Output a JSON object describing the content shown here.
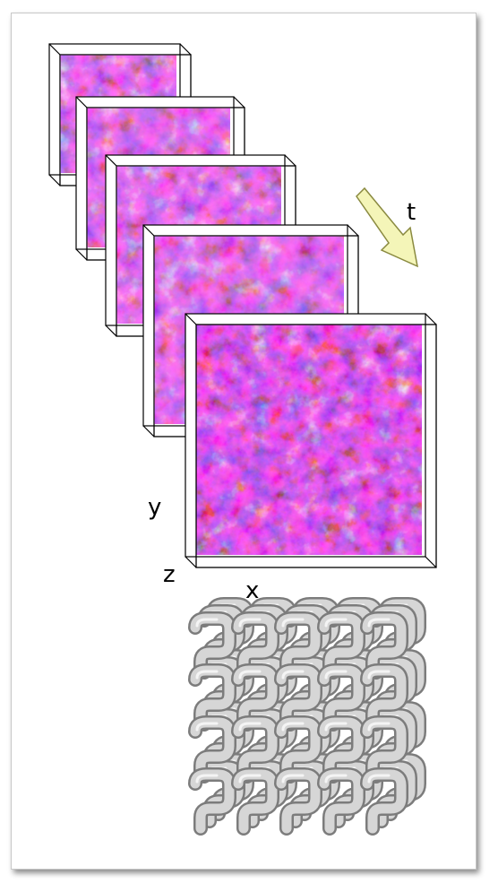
{
  "axes": {
    "y": "y",
    "z": "z",
    "x": "x",
    "time": "t"
  },
  "volume_frames": {
    "count": 5,
    "colormap": [
      "#120018",
      "#4a0a78",
      "#8a1aee",
      "#d3209a",
      "#ff5a10",
      "#ffd24a"
    ]
  },
  "time_arrow": {
    "fill": "#f4f5b8",
    "stroke": "#8a8a40"
  },
  "lattice": {
    "rows": 4,
    "cols": 5,
    "color": "#d6d6d6"
  }
}
